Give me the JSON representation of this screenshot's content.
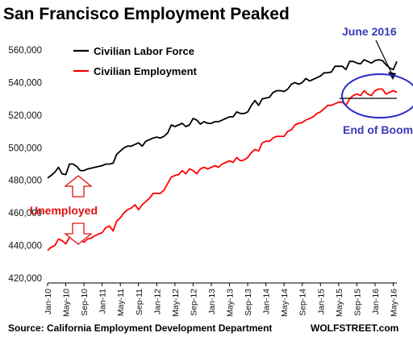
{
  "chart_data": {
    "type": "line",
    "title": "San Francisco Employment Peaked",
    "source": "Source: California Employment Development Department",
    "brand": "WOLFSTREET.com",
    "ylim": [
      420000,
      560000
    ],
    "yticks": [
      "420,000",
      "440,000",
      "460,000",
      "480,000",
      "500,000",
      "520,000",
      "540,000",
      "560,000"
    ],
    "xtick_labels": [
      "Jan-10",
      "May-10",
      "Sep-10",
      "Jan-11",
      "May-11",
      "Sep-11",
      "Jan-12",
      "May-12",
      "Sep-12",
      "Jan-13",
      "May-13",
      "Sep-13",
      "Jan-14",
      "May-14",
      "Sep-14",
      "Jan-15",
      "May-15",
      "Sep-15",
      "Jan-16",
      "May-16"
    ],
    "grid": false,
    "legend_position": "top-left",
    "series": [
      {
        "name": "Civilian Labor Force",
        "color": "#000000",
        "values": [
          481500,
          483000,
          485000,
          488000,
          484000,
          483500,
          490000,
          490000,
          488500,
          486000,
          486000,
          487000,
          487500,
          488000,
          488500,
          489000,
          490000,
          490000,
          490500,
          496000,
          498000,
          500000,
          501000,
          501000,
          502000,
          503000,
          501000,
          504000,
          505000,
          506000,
          506500,
          506000,
          507000,
          509000,
          514000,
          513000,
          514000,
          515000,
          513000,
          514000,
          518000,
          517000,
          514500,
          516000,
          515000,
          515000,
          516000,
          516000,
          517000,
          518000,
          519000,
          519000,
          522000,
          521000,
          521000,
          522000,
          526000,
          529000,
          526000,
          530000,
          530500,
          531000,
          534000,
          535000,
          535000,
          534500,
          536000,
          539000,
          540000,
          539000,
          540000,
          542500,
          541000,
          542000,
          543000,
          544000,
          546000,
          546000,
          546500,
          550000,
          550000,
          550000,
          548000,
          553000,
          553000,
          552000,
          551500,
          554000,
          553000,
          552000,
          553500,
          554000,
          553500,
          551000,
          549000,
          548000,
          553000
        ]
      },
      {
        "name": "Civilian Employment",
        "color": "#ff0000",
        "values": [
          437000,
          439000,
          440000,
          444000,
          443000,
          441000,
          445000,
          445500,
          445000,
          444000,
          442000,
          444000,
          444500,
          446000,
          447000,
          448000,
          451000,
          452000,
          449000,
          455000,
          457000,
          460000,
          462000,
          463000,
          465000,
          462000,
          465000,
          467000,
          469000,
          472000,
          472000,
          472000,
          474000,
          478000,
          482000,
          483000,
          483500,
          486000,
          484000,
          487000,
          486000,
          484000,
          487000,
          488000,
          487000,
          488000,
          489000,
          488000,
          490000,
          491000,
          492000,
          491000,
          494000,
          492000,
          492500,
          494000,
          497000,
          499000,
          498000,
          503000,
          504000,
          504000,
          506000,
          507000,
          507000,
          507000,
          510000,
          511000,
          514000,
          515000,
          515500,
          517000,
          518000,
          519000,
          521000,
          522000,
          524000,
          526000,
          526000,
          527000,
          528000,
          528000,
          526000,
          530000,
          532000,
          533000,
          532000,
          535000,
          533000,
          532000,
          535000,
          536000,
          536000,
          533000,
          534000,
          535000,
          534000
        ]
      }
    ],
    "annotations": {
      "peak_label": "June 2016",
      "boom_label": "End of Boom",
      "gap_label": "Unemployed"
    }
  }
}
